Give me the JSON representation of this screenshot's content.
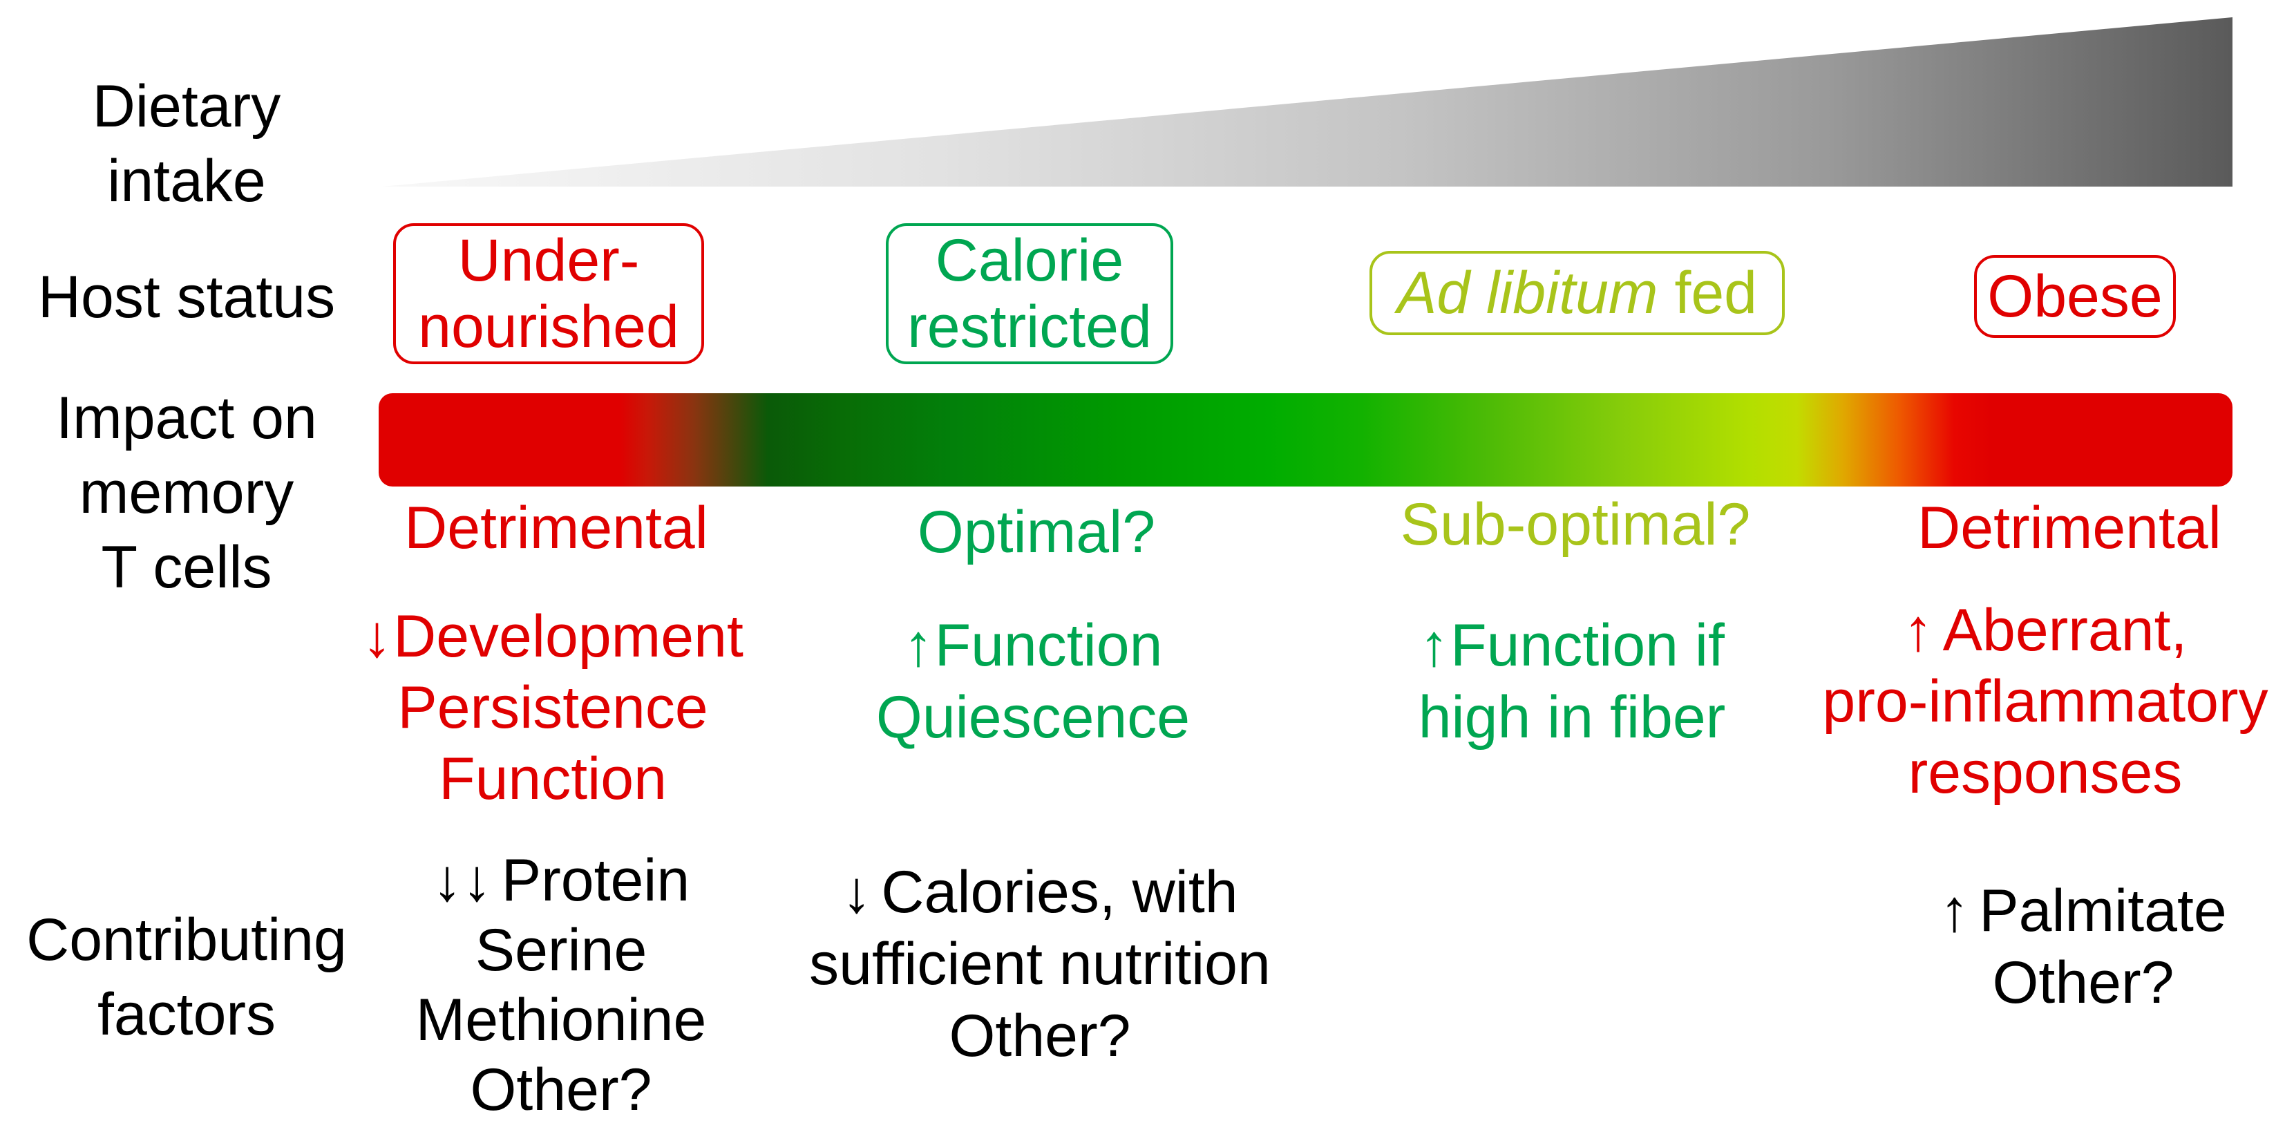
{
  "colors": {
    "red": "#e00000",
    "green": "#00a651",
    "yellow_green": "#a8c41a",
    "black": "#000000"
  },
  "row_labels": {
    "dietary_intake": [
      "Dietary",
      "intake"
    ],
    "host_status": "Host status",
    "impact_on_memory_t_cells": [
      "Impact on",
      "memory",
      "T cells"
    ],
    "contributing_factors": [
      "Contributing",
      "factors"
    ]
  },
  "columns": [
    {
      "host_status": [
        "Under-",
        "nourished"
      ],
      "impact": "Detrimental",
      "effects": [
        {
          "arrow": "↓",
          "text": "Development"
        },
        {
          "text": "Persistence"
        },
        {
          "text": "Function"
        }
      ],
      "factors": [
        {
          "arrow": "↓↓",
          "text": "Protein"
        },
        {
          "text": "Serine"
        },
        {
          "text": "Methionine"
        },
        {
          "text": "Other?"
        }
      ]
    },
    {
      "host_status": [
        "Calorie",
        "restricted"
      ],
      "impact": "Optimal?",
      "effects": [
        {
          "arrow": "↑",
          "text": "Function"
        },
        {
          "text": "Quiescence"
        }
      ],
      "factors": [
        {
          "arrow": "↓",
          "text": "Calories, with"
        },
        {
          "text": "sufficient nutrition"
        },
        {
          "text": "Other?"
        }
      ]
    },
    {
      "host_status": {
        "italic": "Ad libitum",
        "plain": " fed"
      },
      "impact": "Sub-optimal?",
      "effects": [
        {
          "arrow": "↑",
          "text": "Function if"
        },
        {
          "text": "high in fiber"
        }
      ]
    },
    {
      "host_status": "Obese",
      "impact": "Detrimental",
      "effects": [
        {
          "arrow": "↑",
          "text": "Aberrant,"
        },
        {
          "text": "pro-inflammatory"
        },
        {
          "text": "responses"
        }
      ],
      "factors": [
        {
          "arrow": "↑",
          "text": "Palmitate"
        },
        {
          "text": "Other?"
        }
      ]
    }
  ]
}
